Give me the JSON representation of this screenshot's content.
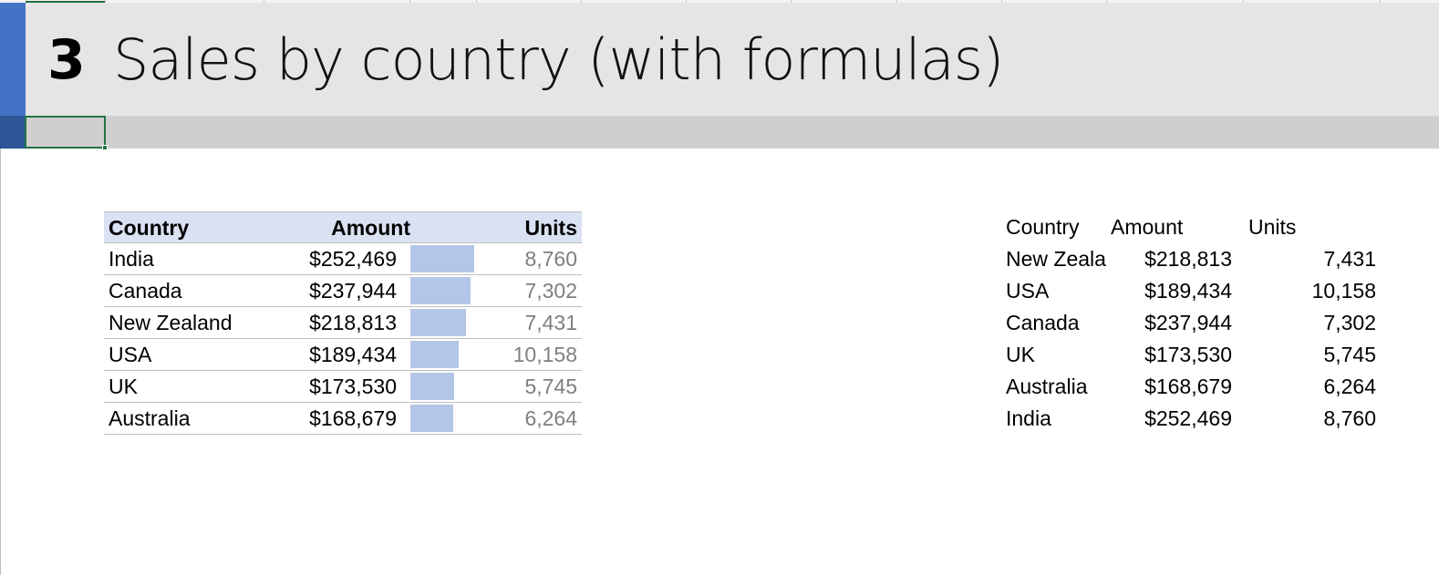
{
  "header": {
    "section_number": "3",
    "title": "Sales by country (with formulas)"
  },
  "colors": {
    "accent": "#4472c4",
    "accent_dark": "#2f5597",
    "title_band": "#e5e5e5",
    "sub_band": "#d0cece",
    "table_header": "#d9e1f2",
    "data_bar": "#b4c6e7",
    "selection": "#217346"
  },
  "left_table": {
    "headers": {
      "country": "Country",
      "amount": "Amount",
      "units": "Units"
    },
    "max_amount": 252469,
    "rows": [
      {
        "country": "India",
        "amount": "$252,469",
        "amount_value": 252469,
        "units": "8,760"
      },
      {
        "country": "Canada",
        "amount": "$237,944",
        "amount_value": 237944,
        "units": "7,302"
      },
      {
        "country": "New Zealand",
        "amount": "$218,813",
        "amount_value": 218813,
        "units": "7,431"
      },
      {
        "country": "USA",
        "amount": "$189,434",
        "amount_value": 189434,
        "units": "10,158"
      },
      {
        "country": "UK",
        "amount": "$173,530",
        "amount_value": 173530,
        "units": "5,745"
      },
      {
        "country": "Australia",
        "amount": "$168,679",
        "amount_value": 168679,
        "units": "6,264"
      }
    ]
  },
  "right_table": {
    "headers": {
      "country": "Country",
      "amount": "Amount",
      "units": "Units"
    },
    "rows": [
      {
        "country": "New Zeala",
        "amount": "$218,813",
        "units": "7,431"
      },
      {
        "country": "USA",
        "amount": "$189,434",
        "units": "10,158"
      },
      {
        "country": "Canada",
        "amount": "$237,944",
        "units": "7,302"
      },
      {
        "country": "UK",
        "amount": "$173,530",
        "units": "5,745"
      },
      {
        "country": "Australia",
        "amount": "$168,679",
        "units": "6,264"
      },
      {
        "country": "India",
        "amount": "$252,469",
        "units": "8,760"
      }
    ]
  }
}
